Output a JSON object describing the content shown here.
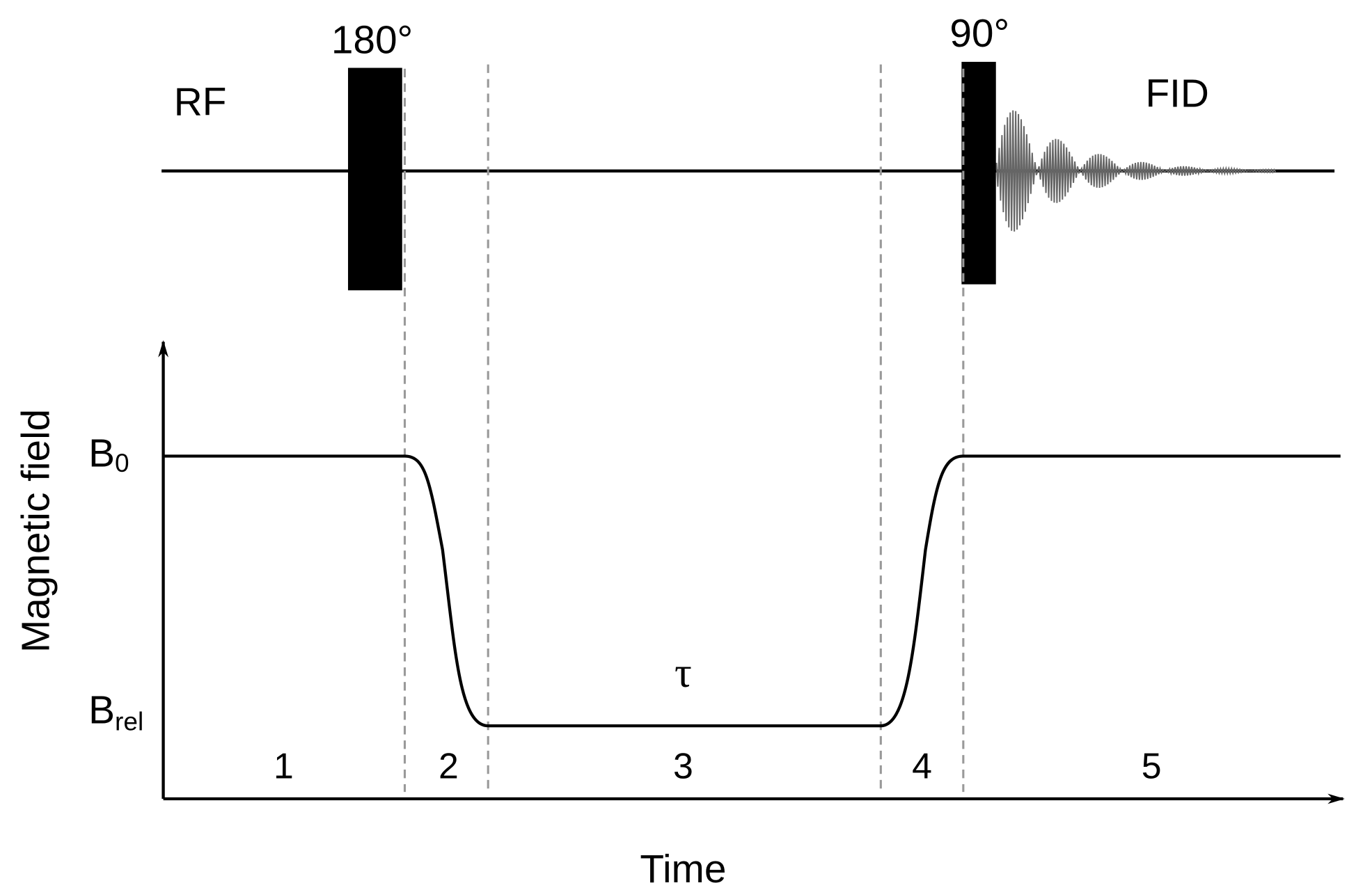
{
  "rf": {
    "label": "RF",
    "pulses": [
      "180°",
      "90°"
    ],
    "signal": "FID"
  },
  "axes": {
    "y": "Magnetic field",
    "x": "Time"
  },
  "levels": [
    {
      "symbol": "B",
      "subscript": "0"
    },
    {
      "symbol": "B",
      "subscript": "rel"
    }
  ],
  "interval": "τ",
  "periods": [
    "1",
    "2",
    "3",
    "4",
    "5"
  ]
}
